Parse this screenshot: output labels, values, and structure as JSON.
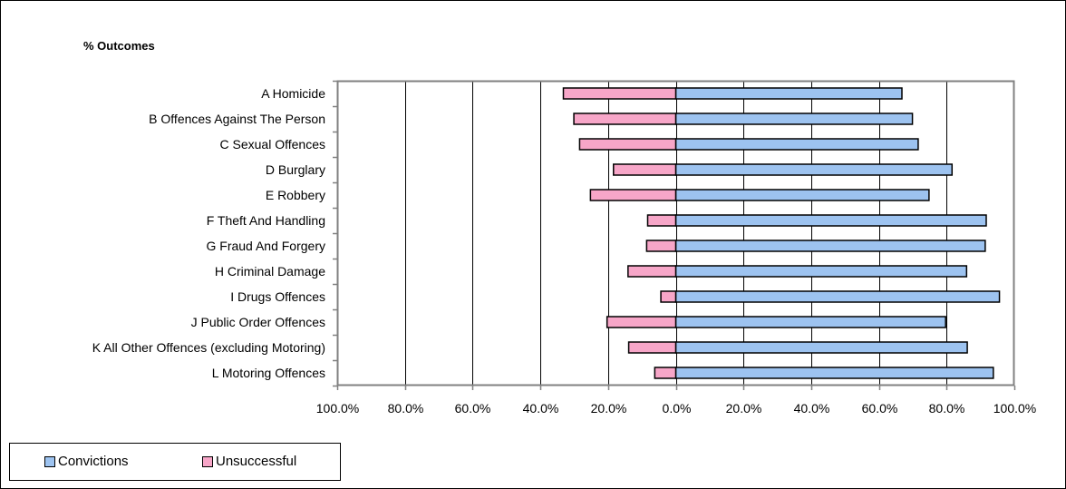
{
  "chart_data": {
    "type": "bar",
    "orientation": "horizontal",
    "stacking": "diverging",
    "title": "% Outcomes",
    "categories": [
      "A Homicide",
      "B Offences Against The Person",
      "C Sexual Offences",
      "D Burglary",
      "E Robbery",
      "F Theft And Handling",
      "G Fraud And Forgery",
      "H Criminal Damage",
      "I Drugs Offences",
      "J Public Order Offences",
      "K All Other Offences (excluding Motoring)",
      "L Motoring Offences"
    ],
    "series": [
      {
        "name": "Convictions",
        "color": "#9DC3F0",
        "values": [
          66.8,
          69.9,
          71.6,
          81.6,
          74.8,
          91.7,
          91.4,
          85.9,
          95.6,
          79.7,
          86.1,
          93.8
        ]
      },
      {
        "name": "Unsuccessful",
        "color": "#F7A6C8",
        "values": [
          33.2,
          30.1,
          28.4,
          18.4,
          25.2,
          8.3,
          8.6,
          14.1,
          4.4,
          20.3,
          13.9,
          6.2
        ]
      }
    ],
    "xlim": [
      -100,
      100
    ],
    "xticks": [
      "100.0%",
      "80.0%",
      "60.0%",
      "40.0%",
      "20.0%",
      "0.0%",
      "20.0%",
      "40.0%",
      "60.0%",
      "80.0%",
      "100.0%"
    ],
    "grid": true,
    "legend_position": "bottom-left",
    "plot_background": "#FFFFFF",
    "axis_color": "#808080"
  }
}
